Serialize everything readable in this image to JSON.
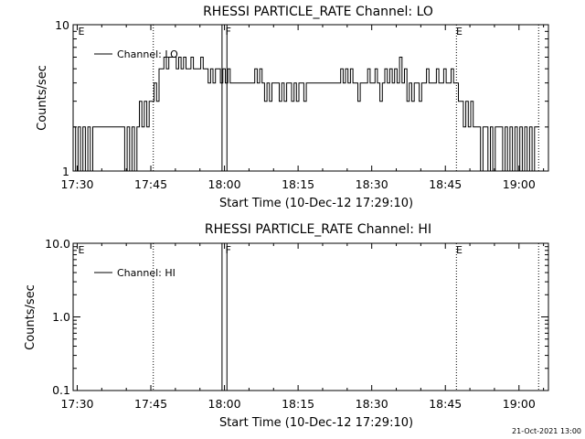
{
  "footer_date": "21-Oct-2021 13:00",
  "chart_data": [
    {
      "type": "line",
      "title": "RHESSI PARTICLE_RATE Channel: LO",
      "xlabel": "Start Time (10-Dec-12 17:29:10)",
      "ylabel": "Counts/sec",
      "y_scale": "log",
      "ylim": [
        1,
        10
      ],
      "y_tick_labels": [
        "1",
        "10"
      ],
      "xlim": [
        "17:29:10",
        "19:06:00"
      ],
      "x_tick_labels": [
        "17:30",
        "17:45",
        "18:00",
        "18:15",
        "18:30",
        "18:45",
        "19:00"
      ],
      "legend": {
        "position": "top-left",
        "entries": [
          "Channel: LO"
        ]
      },
      "grid": false,
      "markers": [
        {
          "label": "E",
          "time": "17:30"
        },
        {
          "label": "F",
          "time": "18:00"
        },
        {
          "label": "E",
          "time": "18:47"
        }
      ],
      "vertical_lines": [
        {
          "time": "17:45:30",
          "style": "dotted"
        },
        {
          "time": "17:59:30",
          "style": "solid"
        },
        {
          "time": "18:00:30",
          "style": "solid"
        },
        {
          "time": "18:47:15",
          "style": "dotted"
        },
        {
          "time": "19:04:00",
          "style": "dotted"
        }
      ],
      "series": [
        {
          "name": "Channel: LO",
          "style": "step",
          "points": [
            [
              "17:29:10",
              2
            ],
            [
              "17:29:40",
              1
            ],
            [
              "17:30:10",
              2
            ],
            [
              "17:30:40",
              1
            ],
            [
              "17:31:10",
              2
            ],
            [
              "17:31:40",
              1
            ],
            [
              "17:32:10",
              2
            ],
            [
              "17:32:40",
              1
            ],
            [
              "17:33:10",
              2
            ],
            [
              "17:33:40",
              2
            ],
            [
              "17:34:10",
              2
            ],
            [
              "17:34:40",
              2
            ],
            [
              "17:35:10",
              2
            ],
            [
              "17:35:40",
              2
            ],
            [
              "17:36:10",
              2
            ],
            [
              "17:36:40",
              2
            ],
            [
              "17:37:10",
              2
            ],
            [
              "17:37:40",
              2
            ],
            [
              "17:38:10",
              2
            ],
            [
              "17:38:40",
              2
            ],
            [
              "17:39:10",
              2
            ],
            [
              "17:39:40",
              1
            ],
            [
              "17:40:10",
              2
            ],
            [
              "17:40:40",
              1
            ],
            [
              "17:41:10",
              2
            ],
            [
              "17:41:40",
              1
            ],
            [
              "17:42:10",
              2
            ],
            [
              "17:42:40",
              3
            ],
            [
              "17:43:10",
              2
            ],
            [
              "17:43:40",
              3
            ],
            [
              "17:44:10",
              2
            ],
            [
              "17:44:40",
              3
            ],
            [
              "17:45:10",
              3
            ],
            [
              "17:45:40",
              4
            ],
            [
              "17:46:10",
              3
            ],
            [
              "17:46:40",
              5
            ],
            [
              "17:47:10",
              5
            ],
            [
              "17:47:40",
              6
            ],
            [
              "17:48:10",
              5
            ],
            [
              "17:48:40",
              6
            ],
            [
              "17:49:10",
              6
            ],
            [
              "17:49:40",
              6
            ],
            [
              "17:50:10",
              5
            ],
            [
              "17:50:40",
              6
            ],
            [
              "17:51:10",
              5
            ],
            [
              "17:51:40",
              6
            ],
            [
              "17:52:10",
              5
            ],
            [
              "17:52:40",
              5
            ],
            [
              "17:53:10",
              6
            ],
            [
              "17:53:40",
              5
            ],
            [
              "17:54:10",
              5
            ],
            [
              "17:54:40",
              5
            ],
            [
              "17:55:10",
              6
            ],
            [
              "17:55:40",
              5
            ],
            [
              "17:56:10",
              5
            ],
            [
              "17:56:40",
              4
            ],
            [
              "17:57:10",
              5
            ],
            [
              "17:57:40",
              4
            ],
            [
              "17:58:10",
              5
            ],
            [
              "17:58:40",
              5
            ],
            [
              "17:59:10",
              4
            ],
            [
              "17:59:40",
              5
            ],
            [
              "18:00:10",
              4
            ],
            [
              "18:00:40",
              5
            ],
            [
              "18:01:10",
              4
            ],
            [
              "18:01:40",
              4
            ],
            [
              "18:02:10",
              4
            ],
            [
              "18:02:40",
              4
            ],
            [
              "18:03:10",
              4
            ],
            [
              "18:03:40",
              4
            ],
            [
              "18:04:10",
              4
            ],
            [
              "18:04:40",
              4
            ],
            [
              "18:05:10",
              4
            ],
            [
              "18:05:40",
              4
            ],
            [
              "18:06:10",
              5
            ],
            [
              "18:06:40",
              4
            ],
            [
              "18:07:10",
              5
            ],
            [
              "18:07:40",
              4
            ],
            [
              "18:08:10",
              3
            ],
            [
              "18:08:40",
              4
            ],
            [
              "18:09:10",
              3
            ],
            [
              "18:09:40",
              4
            ],
            [
              "18:10:10",
              4
            ],
            [
              "18:10:40",
              4
            ],
            [
              "18:11:10",
              3
            ],
            [
              "18:11:40",
              4
            ],
            [
              "18:12:10",
              3
            ],
            [
              "18:12:40",
              4
            ],
            [
              "18:13:10",
              4
            ],
            [
              "18:13:40",
              3
            ],
            [
              "18:14:10",
              4
            ],
            [
              "18:14:40",
              3
            ],
            [
              "18:15:10",
              4
            ],
            [
              "18:15:40",
              4
            ],
            [
              "18:16:10",
              3
            ],
            [
              "18:16:40",
              4
            ],
            [
              "18:17:10",
              4
            ],
            [
              "18:17:40",
              4
            ],
            [
              "18:18:10",
              4
            ],
            [
              "18:18:40",
              4
            ],
            [
              "18:19:10",
              4
            ],
            [
              "18:19:40",
              4
            ],
            [
              "18:20:10",
              4
            ],
            [
              "18:20:40",
              4
            ],
            [
              "18:21:10",
              4
            ],
            [
              "18:21:40",
              4
            ],
            [
              "18:22:10",
              4
            ],
            [
              "18:22:40",
              4
            ],
            [
              "18:23:10",
              4
            ],
            [
              "18:23:40",
              5
            ],
            [
              "18:24:10",
              4
            ],
            [
              "18:24:40",
              5
            ],
            [
              "18:25:10",
              4
            ],
            [
              "18:25:40",
              5
            ],
            [
              "18:26:10",
              4
            ],
            [
              "18:26:40",
              4
            ],
            [
              "18:27:10",
              3
            ],
            [
              "18:27:40",
              4
            ],
            [
              "18:28:10",
              4
            ],
            [
              "18:28:40",
              4
            ],
            [
              "18:29:10",
              5
            ],
            [
              "18:29:40",
              4
            ],
            [
              "18:30:10",
              4
            ],
            [
              "18:30:40",
              5
            ],
            [
              "18:31:10",
              4
            ],
            [
              "18:31:40",
              3
            ],
            [
              "18:32:10",
              4
            ],
            [
              "18:32:40",
              5
            ],
            [
              "18:33:10",
              4
            ],
            [
              "18:33:40",
              5
            ],
            [
              "18:34:10",
              4
            ],
            [
              "18:34:40",
              5
            ],
            [
              "18:35:10",
              4
            ],
            [
              "18:35:40",
              6
            ],
            [
              "18:36:10",
              4
            ],
            [
              "18:36:40",
              5
            ],
            [
              "18:37:10",
              3
            ],
            [
              "18:37:40",
              4
            ],
            [
              "18:38:10",
              3
            ],
            [
              "18:38:40",
              4
            ],
            [
              "18:39:10",
              4
            ],
            [
              "18:39:40",
              3
            ],
            [
              "18:40:10",
              4
            ],
            [
              "18:40:40",
              4
            ],
            [
              "18:41:10",
              5
            ],
            [
              "18:41:40",
              4
            ],
            [
              "18:42:10",
              4
            ],
            [
              "18:42:40",
              4
            ],
            [
              "18:43:10",
              5
            ],
            [
              "18:43:40",
              4
            ],
            [
              "18:44:10",
              4
            ],
            [
              "18:44:40",
              5
            ],
            [
              "18:45:10",
              4
            ],
            [
              "18:45:40",
              4
            ],
            [
              "18:46:10",
              5
            ],
            [
              "18:46:40",
              4
            ],
            [
              "18:47:10",
              4
            ],
            [
              "18:47:40",
              3
            ],
            [
              "18:48:10",
              3
            ],
            [
              "18:48:40",
              2
            ],
            [
              "18:49:10",
              3
            ],
            [
              "18:49:40",
              2
            ],
            [
              "18:50:10",
              3
            ],
            [
              "18:50:40",
              2
            ],
            [
              "18:51:10",
              2
            ],
            [
              "18:51:40",
              2
            ],
            [
              "18:52:10",
              1
            ],
            [
              "18:52:40",
              2
            ],
            [
              "18:53:10",
              2
            ],
            [
              "18:53:40",
              1
            ],
            [
              "18:54:10",
              2
            ],
            [
              "18:54:40",
              1
            ],
            [
              "18:55:10",
              2
            ],
            [
              "18:55:40",
              2
            ],
            [
              "18:56:10",
              2
            ],
            [
              "18:56:40",
              1
            ],
            [
              "18:57:10",
              2
            ],
            [
              "18:57:40",
              1
            ],
            [
              "18:58:10",
              2
            ],
            [
              "18:58:40",
              1
            ],
            [
              "18:59:10",
              2
            ],
            [
              "18:59:40",
              1
            ],
            [
              "19:00:10",
              2
            ],
            [
              "19:00:40",
              1
            ],
            [
              "19:01:10",
              2
            ],
            [
              "19:01:40",
              1
            ],
            [
              "19:02:10",
              2
            ],
            [
              "19:02:40",
              1
            ],
            [
              "19:03:10",
              2
            ],
            [
              "19:03:40",
              2
            ]
          ]
        }
      ]
    },
    {
      "type": "line",
      "title": "RHESSI PARTICLE_RATE Channel: HI",
      "xlabel": "Start Time (10-Dec-12 17:29:10)",
      "ylabel": "Counts/sec",
      "y_scale": "log",
      "ylim": [
        0.1,
        10
      ],
      "y_tick_labels": [
        "0.1",
        "1.0",
        "10.0"
      ],
      "xlim": [
        "17:29:10",
        "19:06:00"
      ],
      "x_tick_labels": [
        "17:30",
        "17:45",
        "18:00",
        "18:15",
        "18:30",
        "18:45",
        "19:00"
      ],
      "legend": {
        "position": "top-left",
        "entries": [
          "Channel: HI"
        ]
      },
      "grid": false,
      "markers": [
        {
          "label": "E",
          "time": "17:30"
        },
        {
          "label": "F",
          "time": "18:00"
        },
        {
          "label": "E",
          "time": "18:47"
        }
      ],
      "vertical_lines": [
        {
          "time": "17:45:30",
          "style": "dotted"
        },
        {
          "time": "17:59:30",
          "style": "solid"
        },
        {
          "time": "18:00:30",
          "style": "solid"
        },
        {
          "time": "18:47:15",
          "style": "dotted"
        },
        {
          "time": "19:04:00",
          "style": "dotted"
        }
      ],
      "series": [
        {
          "name": "Channel: HI",
          "style": "step",
          "points": []
        }
      ]
    }
  ]
}
